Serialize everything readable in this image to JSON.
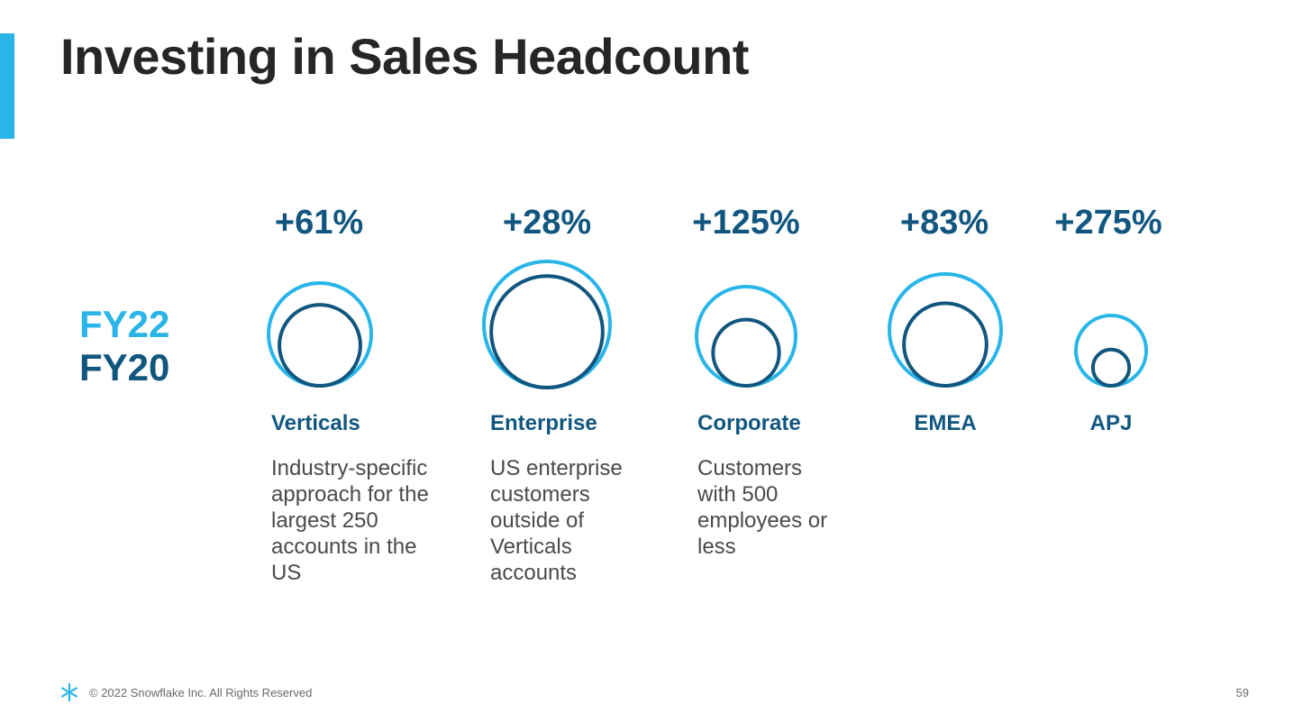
{
  "slide": {
    "title": "Investing in Sales Headcount",
    "footer": "© 2022 Snowflake Inc. All Rights Reserved",
    "page_number": "59",
    "logo": "snowflake-logo"
  },
  "colors": {
    "accent": "#29b5e8",
    "fy22": "#29b5e8",
    "fy20": "#11567f",
    "title": "#262626",
    "body": "#4a4a4a"
  },
  "legend": {
    "fy22": "FY22",
    "fy20": "FY20"
  },
  "chart_data": {
    "type": "bubble",
    "legend_placement": "left",
    "series": [
      {
        "name": "FY22",
        "color": "#29b5e8"
      },
      {
        "name": "FY20",
        "color": "#11567f"
      }
    ],
    "categories": [
      {
        "name": "Verticals",
        "growth_label": "+61%",
        "growth": 61,
        "description": "Industry-specific approach for the largest 250 accounts in the US"
      },
      {
        "name": "Enterprise",
        "growth_label": "+28%",
        "growth": 28,
        "description": "US enterprise customers outside of Verticals accounts"
      },
      {
        "name": "Corporate",
        "growth_label": "+125%",
        "growth": 125,
        "description": "Customers with 500 employees or less"
      },
      {
        "name": "EMEA",
        "growth_label": "+83%",
        "growth": 83,
        "description": ""
      },
      {
        "name": "APJ",
        "growth_label": "+275%",
        "growth": 275,
        "description": ""
      }
    ]
  }
}
